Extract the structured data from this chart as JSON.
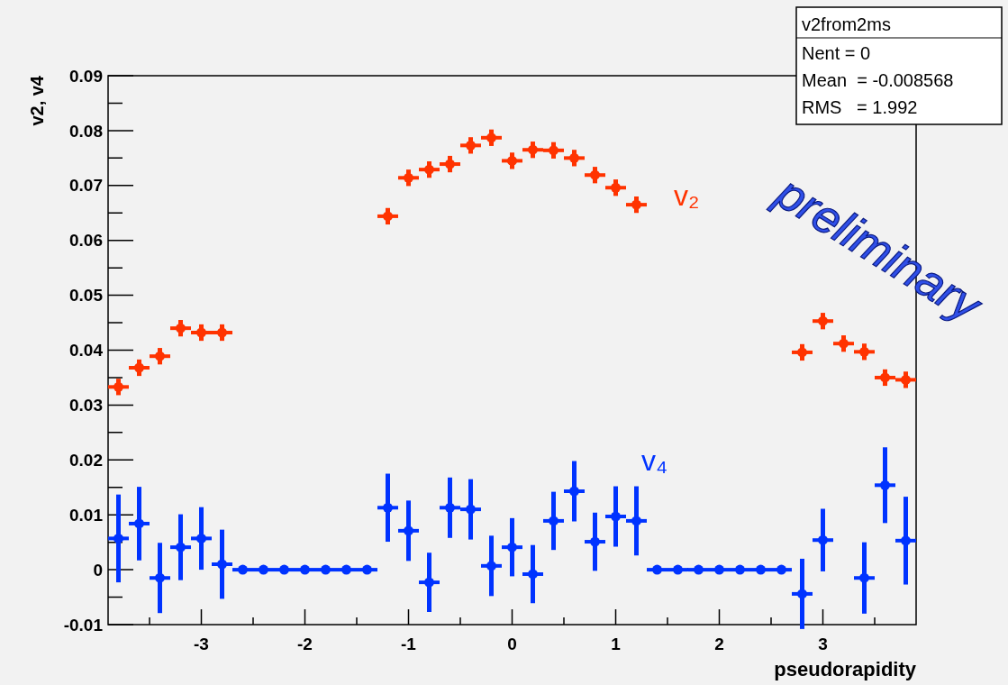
{
  "chart_data": {
    "type": "scatter",
    "xlabel": "pseudorapidity",
    "ylabel": "v2, v4",
    "x": [
      -3.8,
      -3.6,
      -3.4,
      -3.2,
      -3.0,
      -2.8,
      -2.6,
      -2.4,
      -2.2,
      -2.0,
      -1.8,
      -1.6,
      -1.4,
      -1.2,
      -1.0,
      -0.8,
      -0.6,
      -0.4,
      -0.2,
      0.0,
      0.2,
      0.4,
      0.6,
      0.8,
      1.0,
      1.2,
      1.4,
      1.6,
      1.8,
      2.0,
      2.2,
      2.4,
      2.6,
      2.8,
      3.0,
      3.2,
      3.4,
      3.6,
      3.8
    ],
    "series": [
      {
        "name": "v₂",
        "color": "#ff3300",
        "values": [
          0.0333,
          0.0368,
          0.0389,
          0.044,
          0.0432,
          0.0432,
          null,
          null,
          null,
          null,
          null,
          null,
          null,
          0.0644,
          0.0714,
          0.0729,
          0.0739,
          0.0773,
          0.0787,
          0.0745,
          0.0765,
          0.0764,
          0.075,
          0.0719,
          0.0696,
          0.0665,
          null,
          null,
          null,
          null,
          null,
          null,
          null,
          0.0396,
          0.0453,
          0.0412,
          0.0397,
          0.035,
          0.0346
        ],
        "errors": [
          0.0015,
          0.0015,
          0.0015,
          0.0015,
          0.0015,
          0.0015,
          null,
          null,
          null,
          null,
          null,
          null,
          null,
          0.0015,
          0.0015,
          0.0015,
          0.0015,
          0.0015,
          0.0015,
          0.0015,
          0.0015,
          0.0015,
          0.0015,
          0.0015,
          0.0015,
          0.0015,
          null,
          null,
          null,
          null,
          null,
          null,
          null,
          0.0015,
          0.0015,
          0.0015,
          0.0015,
          0.0015,
          0.0015
        ],
        "xerrors": [
          0.1,
          0.1,
          0.1,
          0.1,
          0.1,
          0.1,
          null,
          null,
          null,
          null,
          null,
          null,
          null,
          0.1,
          0.1,
          0.1,
          0.1,
          0.1,
          0.1,
          0.1,
          0.1,
          0.1,
          0.1,
          0.1,
          0.1,
          0.1,
          null,
          null,
          null,
          null,
          null,
          null,
          null,
          0.1,
          0.1,
          0.1,
          0.1,
          0.1,
          0.1
        ]
      },
      {
        "name": "v₄",
        "color": "#0033ff",
        "values": [
          0.0057,
          0.0084,
          -0.0015,
          0.0041,
          0.0057,
          0.001,
          0,
          0,
          0,
          0,
          0,
          0,
          0,
          0.0113,
          0.0071,
          -0.0023,
          0.0113,
          0.011,
          0.0007,
          0.0041,
          -0.0008,
          0.0089,
          0.0143,
          0.0051,
          0.0097,
          0.0089,
          0,
          0,
          0,
          0,
          0,
          0,
          0,
          -0.0044,
          0.0054,
          null,
          -0.0015,
          0.0154,
          0.0053
        ],
        "errors": [
          0.008,
          0.0067,
          0.0064,
          0.006,
          0.0057,
          0.0063,
          null,
          null,
          null,
          null,
          null,
          null,
          null,
          0.0062,
          0.0055,
          0.0054,
          0.0055,
          0.0055,
          0.0055,
          0.0053,
          0.0053,
          0.0053,
          0.0055,
          0.0053,
          0.0055,
          0.0063,
          null,
          null,
          null,
          null,
          null,
          null,
          null,
          0.0064,
          0.0057,
          null,
          0.0065,
          0.0069,
          0.008
        ],
        "xerrors": [
          0.1,
          0.1,
          0.1,
          0.1,
          0.1,
          0.1,
          0.1,
          0.1,
          0.1,
          0.1,
          0.1,
          0.1,
          0.1,
          0.1,
          0.1,
          0.1,
          0.1,
          0.1,
          0.1,
          0.1,
          0.1,
          0.1,
          0.1,
          0.1,
          0.1,
          0.1,
          0.1,
          0.1,
          0.1,
          0.1,
          0.1,
          0.1,
          0.1,
          0.1,
          0.1,
          null,
          0.1,
          0.1,
          0.1
        ]
      }
    ],
    "xlim": [
      -3.9,
      3.9
    ],
    "xticks": [
      {
        "value": -3.5,
        "label": null
      },
      -3,
      {
        "value": -2.5,
        "label": null
      },
      -2,
      {
        "value": -1.5,
        "label": null
      },
      -1,
      {
        "value": -0.5,
        "label": null
      },
      0,
      {
        "value": 0.5,
        "label": null
      },
      1,
      {
        "value": 1.5,
        "label": null
      },
      2,
      {
        "value": 2.5,
        "label": null
      },
      3,
      {
        "value": 3.5,
        "label": null
      }
    ],
    "ylim": [
      -0.01,
      0.09
    ],
    "yticks": [
      -0.01,
      {
        "value": -0.005,
        "label": null
      },
      0,
      {
        "value": 0.005,
        "label": null
      },
      0.01,
      {
        "value": 0.015,
        "label": null
      },
      0.02,
      {
        "value": 0.025,
        "label": null
      },
      0.03,
      {
        "value": 0.035,
        "label": null
      },
      0.04,
      {
        "value": 0.045,
        "label": null
      },
      0.05,
      {
        "value": 0.055,
        "label": null
      },
      0.06,
      {
        "value": 0.065,
        "label": null
      },
      0.07,
      {
        "value": 0.075,
        "label": null
      },
      0.08,
      {
        "value": 0.085,
        "label": null
      },
      0.09
    ],
    "marker": "circle",
    "annotations": [
      "v2from2ms",
      "Nent = 0",
      "Mean  = -0.008568",
      "RMS   = 1.992",
      "preliminary"
    ]
  }
}
